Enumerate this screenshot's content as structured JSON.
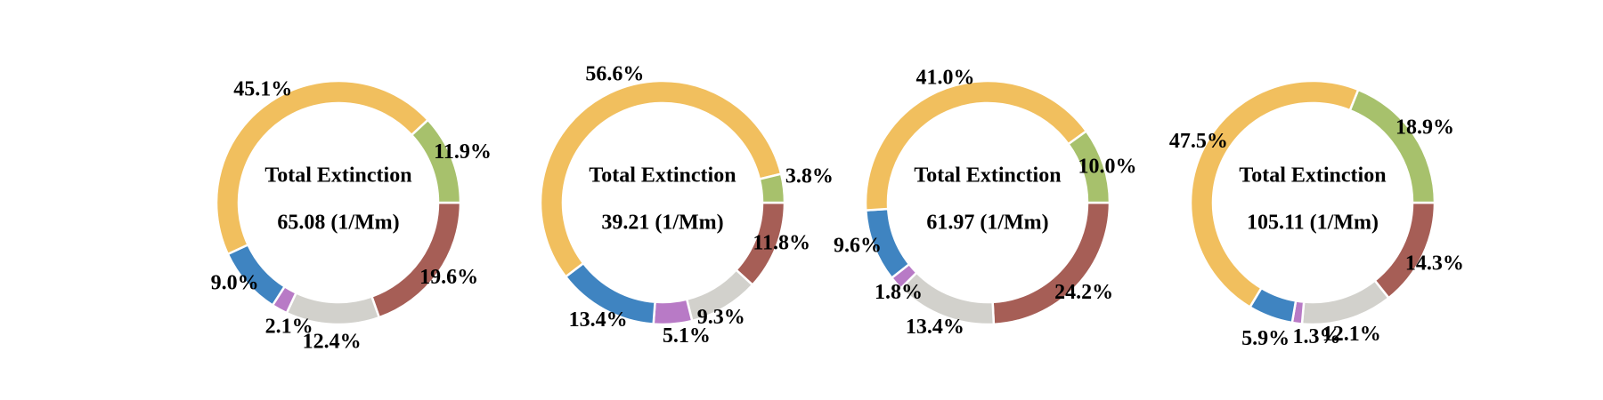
{
  "chart_data": [
    {
      "type": "pie",
      "center_title": "Total Extinction",
      "center_value": "65.08 (1/Mm)",
      "slices": [
        {
          "value": 19.6,
          "label": "19.6%",
          "color": "#a65e56"
        },
        {
          "value": 12.4,
          "label": "12.4%",
          "color": "#d2d1cc"
        },
        {
          "value": 2.1,
          "label": "2.1%",
          "color": "#b87ac6"
        },
        {
          "value": 9.0,
          "label": "9.0%",
          "color": "#3f84c1"
        },
        {
          "value": 45.1,
          "label": "45.1%",
          "color": "#f1bf5e"
        },
        {
          "value": 11.9,
          "label": "11.9%",
          "color": "#a7c16c"
        }
      ]
    },
    {
      "type": "pie",
      "center_title": "Total Extinction",
      "center_value": "39.21 (1/Mm)",
      "slices": [
        {
          "value": 11.8,
          "label": "11.8%",
          "color": "#a65e56"
        },
        {
          "value": 9.3,
          "label": "9.3%",
          "color": "#d2d1cc"
        },
        {
          "value": 5.1,
          "label": "5.1%",
          "color": "#b87ac6"
        },
        {
          "value": 13.4,
          "label": "13.4%",
          "color": "#3f84c1"
        },
        {
          "value": 56.6,
          "label": "56.6%",
          "color": "#f1bf5e"
        },
        {
          "value": 3.8,
          "label": "3.8%",
          "color": "#a7c16c"
        }
      ]
    },
    {
      "type": "pie",
      "center_title": "Total Extinction",
      "center_value": "61.97 (1/Mm)",
      "slices": [
        {
          "value": 24.2,
          "label": "24.2%",
          "color": "#a65e56"
        },
        {
          "value": 13.4,
          "label": "13.4%",
          "color": "#d2d1cc"
        },
        {
          "value": 1.8,
          "label": "1.8%",
          "color": "#b87ac6"
        },
        {
          "value": 9.6,
          "label": "9.6%",
          "color": "#3f84c1"
        },
        {
          "value": 41.0,
          "label": "41.0%",
          "color": "#f1bf5e"
        },
        {
          "value": 10.0,
          "label": "10.0%",
          "color": "#a7c16c"
        }
      ]
    },
    {
      "type": "pie",
      "center_title": "Total Extinction",
      "center_value": "105.11 (1/Mm)",
      "slices": [
        {
          "value": 14.3,
          "label": "14.3%",
          "color": "#a65e56"
        },
        {
          "value": 12.1,
          "label": "12.1%",
          "color": "#d2d1cc"
        },
        {
          "value": 1.3,
          "label": "1.3%",
          "color": "#b87ac6"
        },
        {
          "value": 5.9,
          "label": "5.9%",
          "color": "#3f84c1"
        },
        {
          "value": 47.5,
          "label": "47.5%",
          "color": "#f1bf5e"
        },
        {
          "value": 18.9,
          "label": "18.9%",
          "color": "#a7c16c"
        }
      ]
    }
  ]
}
